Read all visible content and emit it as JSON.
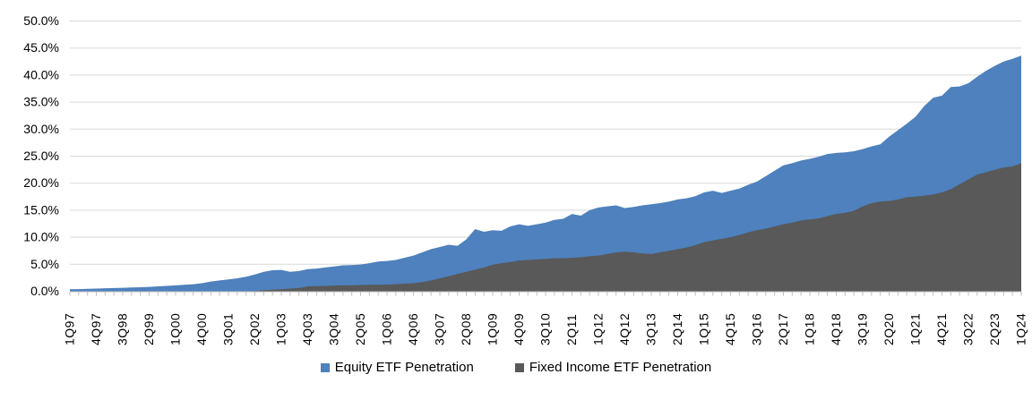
{
  "chart_data": {
    "type": "area",
    "mode": "overlapping",
    "title": "",
    "y_axis": {
      "min": 0,
      "max": 50,
      "step": 5,
      "tick_labels": [
        "0.0%",
        "5.0%",
        "10.0%",
        "15.0%",
        "20.0%",
        "25.0%",
        "30.0%",
        "35.0%",
        "40.0%",
        "45.0%",
        "50.0%"
      ]
    },
    "x_axis": {
      "quarters_total": 109,
      "first_quarter": "1Q97",
      "last_quarter": "1Q24",
      "label_every_n_quarters": 3,
      "tick_labels": [
        "1Q97",
        "4Q97",
        "3Q98",
        "2Q99",
        "1Q00",
        "4Q00",
        "3Q01",
        "2Q02",
        "1Q03",
        "4Q03",
        "3Q04",
        "2Q05",
        "1Q06",
        "4Q06",
        "3Q07",
        "2Q08",
        "1Q09",
        "4Q09",
        "3Q10",
        "2Q11",
        "1Q12",
        "4Q12",
        "3Q13",
        "2Q14",
        "1Q15",
        "4Q15",
        "3Q16",
        "2Q17",
        "1Q18",
        "4Q18",
        "3Q19",
        "2Q20",
        "1Q21",
        "4Q21",
        "3Q22",
        "2Q23",
        "1Q24"
      ]
    },
    "grid": "horizontal",
    "gridline_color": "#D9D9D9",
    "axis_line_color": "#BFBFBF",
    "text_color": "#000000",
    "legend_position": "bottom",
    "series": [
      {
        "name": "Equity ETF Penetration",
        "color": "#4E81BD",
        "values": [
          0.4,
          0.4,
          0.45,
          0.5,
          0.55,
          0.6,
          0.65,
          0.7,
          0.75,
          0.8,
          0.9,
          1.0,
          1.1,
          1.2,
          1.3,
          1.5,
          1.8,
          2.0,
          2.2,
          2.4,
          2.7,
          3.1,
          3.6,
          3.9,
          3.95,
          3.6,
          3.75,
          4.1,
          4.2,
          4.4,
          4.6,
          4.8,
          4.85,
          4.95,
          5.2,
          5.5,
          5.6,
          5.8,
          6.2,
          6.6,
          7.2,
          7.8,
          8.2,
          8.6,
          8.4,
          9.6,
          11.5,
          11.0,
          11.3,
          11.2,
          12.0,
          12.4,
          12.1,
          12.4,
          12.7,
          13.2,
          13.4,
          14.3,
          14.0,
          15.0,
          15.5,
          15.7,
          15.9,
          15.4,
          15.6,
          15.9,
          16.1,
          16.3,
          16.6,
          17.0,
          17.2,
          17.6,
          18.3,
          18.6,
          18.2,
          18.6,
          19.0,
          19.7,
          20.3,
          21.3,
          22.3,
          23.3,
          23.7,
          24.2,
          24.5,
          24.9,
          25.4,
          25.6,
          25.7,
          25.9,
          26.3,
          26.8,
          27.2,
          28.6,
          29.8,
          31.0,
          32.3,
          34.3,
          35.8,
          36.2,
          37.8,
          37.9,
          38.5,
          39.7,
          40.8,
          41.7,
          42.5,
          43.0,
          43.6
        ]
      },
      {
        "name": "Fixed Income ETF Penetration",
        "color": "#595959",
        "values": [
          0,
          0,
          0,
          0,
          0,
          0,
          0,
          0,
          0,
          0,
          0,
          0,
          0,
          0,
          0,
          0,
          0,
          0,
          0,
          0,
          0,
          0.05,
          0.2,
          0.3,
          0.4,
          0.5,
          0.6,
          0.9,
          0.95,
          1.0,
          1.05,
          1.1,
          1.1,
          1.15,
          1.2,
          1.2,
          1.25,
          1.3,
          1.4,
          1.5,
          1.7,
          2.0,
          2.4,
          2.8,
          3.2,
          3.6,
          4.0,
          4.4,
          4.9,
          5.2,
          5.4,
          5.7,
          5.8,
          5.9,
          6.0,
          6.1,
          6.1,
          6.2,
          6.3,
          6.5,
          6.6,
          6.9,
          7.2,
          7.3,
          7.2,
          7.0,
          6.9,
          7.2,
          7.5,
          7.8,
          8.1,
          8.5,
          9.1,
          9.4,
          9.7,
          10.0,
          10.4,
          10.9,
          11.3,
          11.6,
          12.0,
          12.4,
          12.7,
          13.1,
          13.3,
          13.5,
          13.9,
          14.3,
          14.5,
          14.9,
          15.7,
          16.3,
          16.6,
          16.7,
          17.0,
          17.4,
          17.5,
          17.7,
          17.9,
          18.3,
          18.9,
          19.8,
          20.7,
          21.6,
          22.0,
          22.5,
          22.9,
          23.1,
          23.7
        ]
      }
    ]
  },
  "legend": {
    "items": [
      {
        "label": "Equity ETF Penetration",
        "color": "#4E81BD"
      },
      {
        "label": "Fixed Income ETF Penetration",
        "color": "#595959"
      }
    ]
  }
}
